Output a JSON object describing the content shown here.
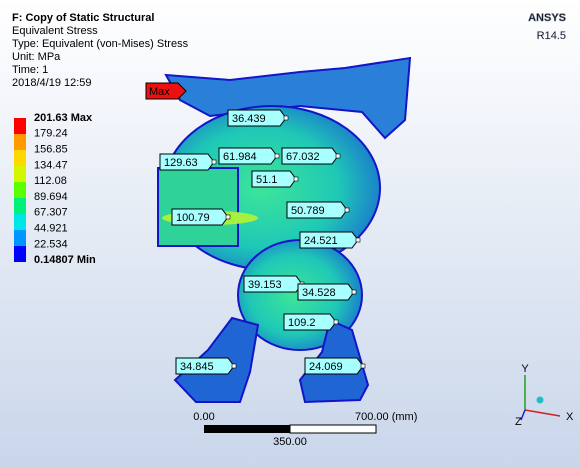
{
  "header": {
    "title": "F: Copy of Static Structural",
    "lines": [
      "Equivalent Stress",
      "Type: Equivalent (von-Mises) Stress",
      "Unit: MPa",
      "Time: 1",
      "2018/4/19 12:59"
    ]
  },
  "logo": {
    "brand": "ANSYS",
    "version": "R14.5"
  },
  "legend": {
    "labels": [
      "201.63 Max",
      "179.24",
      "156.85",
      "134.47",
      "112.08",
      "89.694",
      "67.307",
      "44.921",
      "22.534",
      "0.14807 Min"
    ]
  },
  "max_tag": "Max",
  "probes": [
    "36.439",
    "129.63",
    "61.984",
    "67.032",
    "51.1",
    "100.79",
    "50.789",
    "24.521",
    "39.153",
    "34.528",
    "109.2",
    "34.845",
    "24.069"
  ],
  "scale": {
    "start": "0.00",
    "end": "700.00 (mm)",
    "mid": "350.00"
  },
  "triad": {
    "x": "X",
    "y": "Y",
    "z": "Z"
  }
}
